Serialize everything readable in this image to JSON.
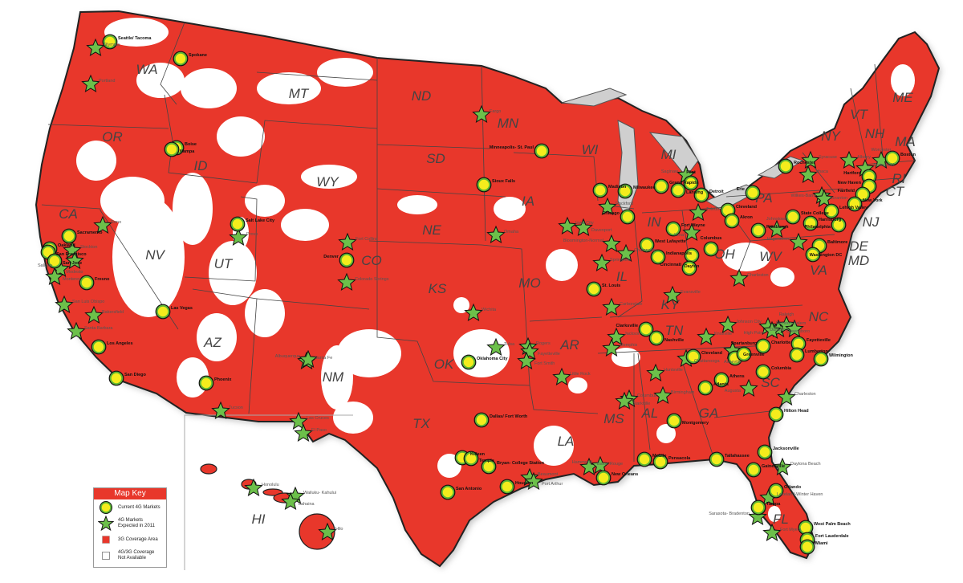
{
  "colors": {
    "coverage_3g": "#e8372b",
    "no_coverage": "#ffffff",
    "market_current_fill": "#f4ec1c",
    "market_current_ring": "#5db634",
    "market_2011": "#6cc04a",
    "border": "#222222"
  },
  "legend": {
    "title": "Map Key",
    "items": [
      {
        "icon": "yellow-circle-icon",
        "label": "Current 4G Markets"
      },
      {
        "icon": "green-star-icon",
        "label": "4G Markets\nExpected in 2011"
      },
      {
        "icon": "red-square-icon",
        "label": "3G Coverage Area"
      },
      {
        "icon": "white-square-icon",
        "label": "4G/3G Coverage\nNot Available"
      }
    ]
  },
  "states": [
    "WA",
    "OR",
    "CA",
    "NV",
    "ID",
    "MT",
    "WY",
    "UT",
    "AZ",
    "NM",
    "CO",
    "ND",
    "SD",
    "NE",
    "KS",
    "OK",
    "TX",
    "MN",
    "IA",
    "MO",
    "AR",
    "LA",
    "WI",
    "MI",
    "IL",
    "IN",
    "OH",
    "KY",
    "TN",
    "MS",
    "AL",
    "GA",
    "FL",
    "SC",
    "NC",
    "VA",
    "WV",
    "PA",
    "NY",
    "ME",
    "VT",
    "NH",
    "MA",
    "RI",
    "CT",
    "NJ",
    "DE",
    "MD",
    "HI"
  ],
  "markets_current": [
    "Seattle/ Tacoma",
    "Spokane",
    "Boise",
    "Nampa",
    "Sacramento",
    "Oakland",
    "San Francisco",
    "San Jose",
    "Fresno",
    "Los Angeles",
    "San Diego",
    "Las Vegas",
    "Phoenix",
    "Salt Lake City",
    "Denver",
    "Oklahoma City",
    "Dallas/ Fort Worth",
    "Killeen",
    "Temple",
    "Bryan- College Station",
    "Houston",
    "San Antonio",
    "Minneapolis- St. Paul",
    "Sioux Falls",
    "Madison",
    "Milwaukee",
    "Chicago",
    "St. Louis",
    "Grand Rapids",
    "Lansing",
    "Flint",
    "Detroit",
    "Cleveland",
    "Akron",
    "Erie",
    "Fort Wayne",
    "West Lafayette",
    "Indianapolis",
    "Dayton",
    "Cincinnati",
    "Columbus",
    "Pittsburgh",
    "Rochester",
    "Boston",
    "Hartford",
    "New Haven",
    "Fairfield",
    "New York",
    "State College",
    "Lehigh Valley",
    "Harrisburg",
    "Philadelphia",
    "Baltimore",
    "Washington DC",
    "Clarksville",
    "Nashville",
    "Cleveland",
    "Greenville",
    "Spartanburg",
    "Charlotte",
    "Fayetteville",
    "Lumberton",
    "Wilmington",
    "Columbia",
    "Atlanta",
    "Athens",
    "Montgomery",
    "Hilton Head",
    "Jacksonville",
    "Gainesville",
    "Orlando",
    "Tampa",
    "West Palm Beach",
    "Fort Lauderdale",
    "Miami",
    "Tallahassee",
    "Mobile",
    "Pensacola",
    "New Orleans"
  ],
  "markets_2011": [
    "Olympia",
    "Portland",
    "Reno",
    "Stockton",
    "Modesto",
    "Salinas",
    "Monterey",
    "San Luis Obispo",
    "Bakersfield",
    "Santa Barbara",
    "Provo",
    "Fort Collins",
    "Colorado Springs",
    "Santa Fe",
    "Albuquerque",
    "Las Cruces",
    "El Paso",
    "Tucson",
    "Fargo",
    "Omaha",
    "Wichita",
    "Tulsa",
    "Rogers",
    "Fayetteville",
    "Fort Smith",
    "Little Rock",
    "Iowa City",
    "Davenport",
    "Rockford",
    "Bloomington-Normal",
    "Champaign",
    "Springfield",
    "Carbondale",
    "Evansville",
    "Saginaw",
    "Toledo",
    "Lima",
    "Charleston",
    "Johnstown",
    "Hagerstown",
    "Syracuse",
    "Ithaca",
    "Albany",
    "Springfield",
    "Worcester",
    "Scranton",
    "Wilkes-Barre",
    "Knoxville",
    "Chattanooga",
    "Johnson City",
    "Asheville",
    "Winston-Salem",
    "Greensboro",
    "High Point",
    "Raleigh",
    "Durham",
    "Jackson",
    "Memphis",
    "Huntsville",
    "Birmingham",
    "Columbus",
    "Starkville",
    "Augusta",
    "Charleston",
    "Daytona Beach",
    "Lakeland-Winter Haven",
    "Sarasota- Bradenton",
    "Fort Myers",
    "Baton Rouge",
    "Hammond",
    "Beaumont",
    "Port Arthur",
    "Honolulu",
    "Wailuku- Kahului",
    "Lahaina",
    "Hilo"
  ]
}
